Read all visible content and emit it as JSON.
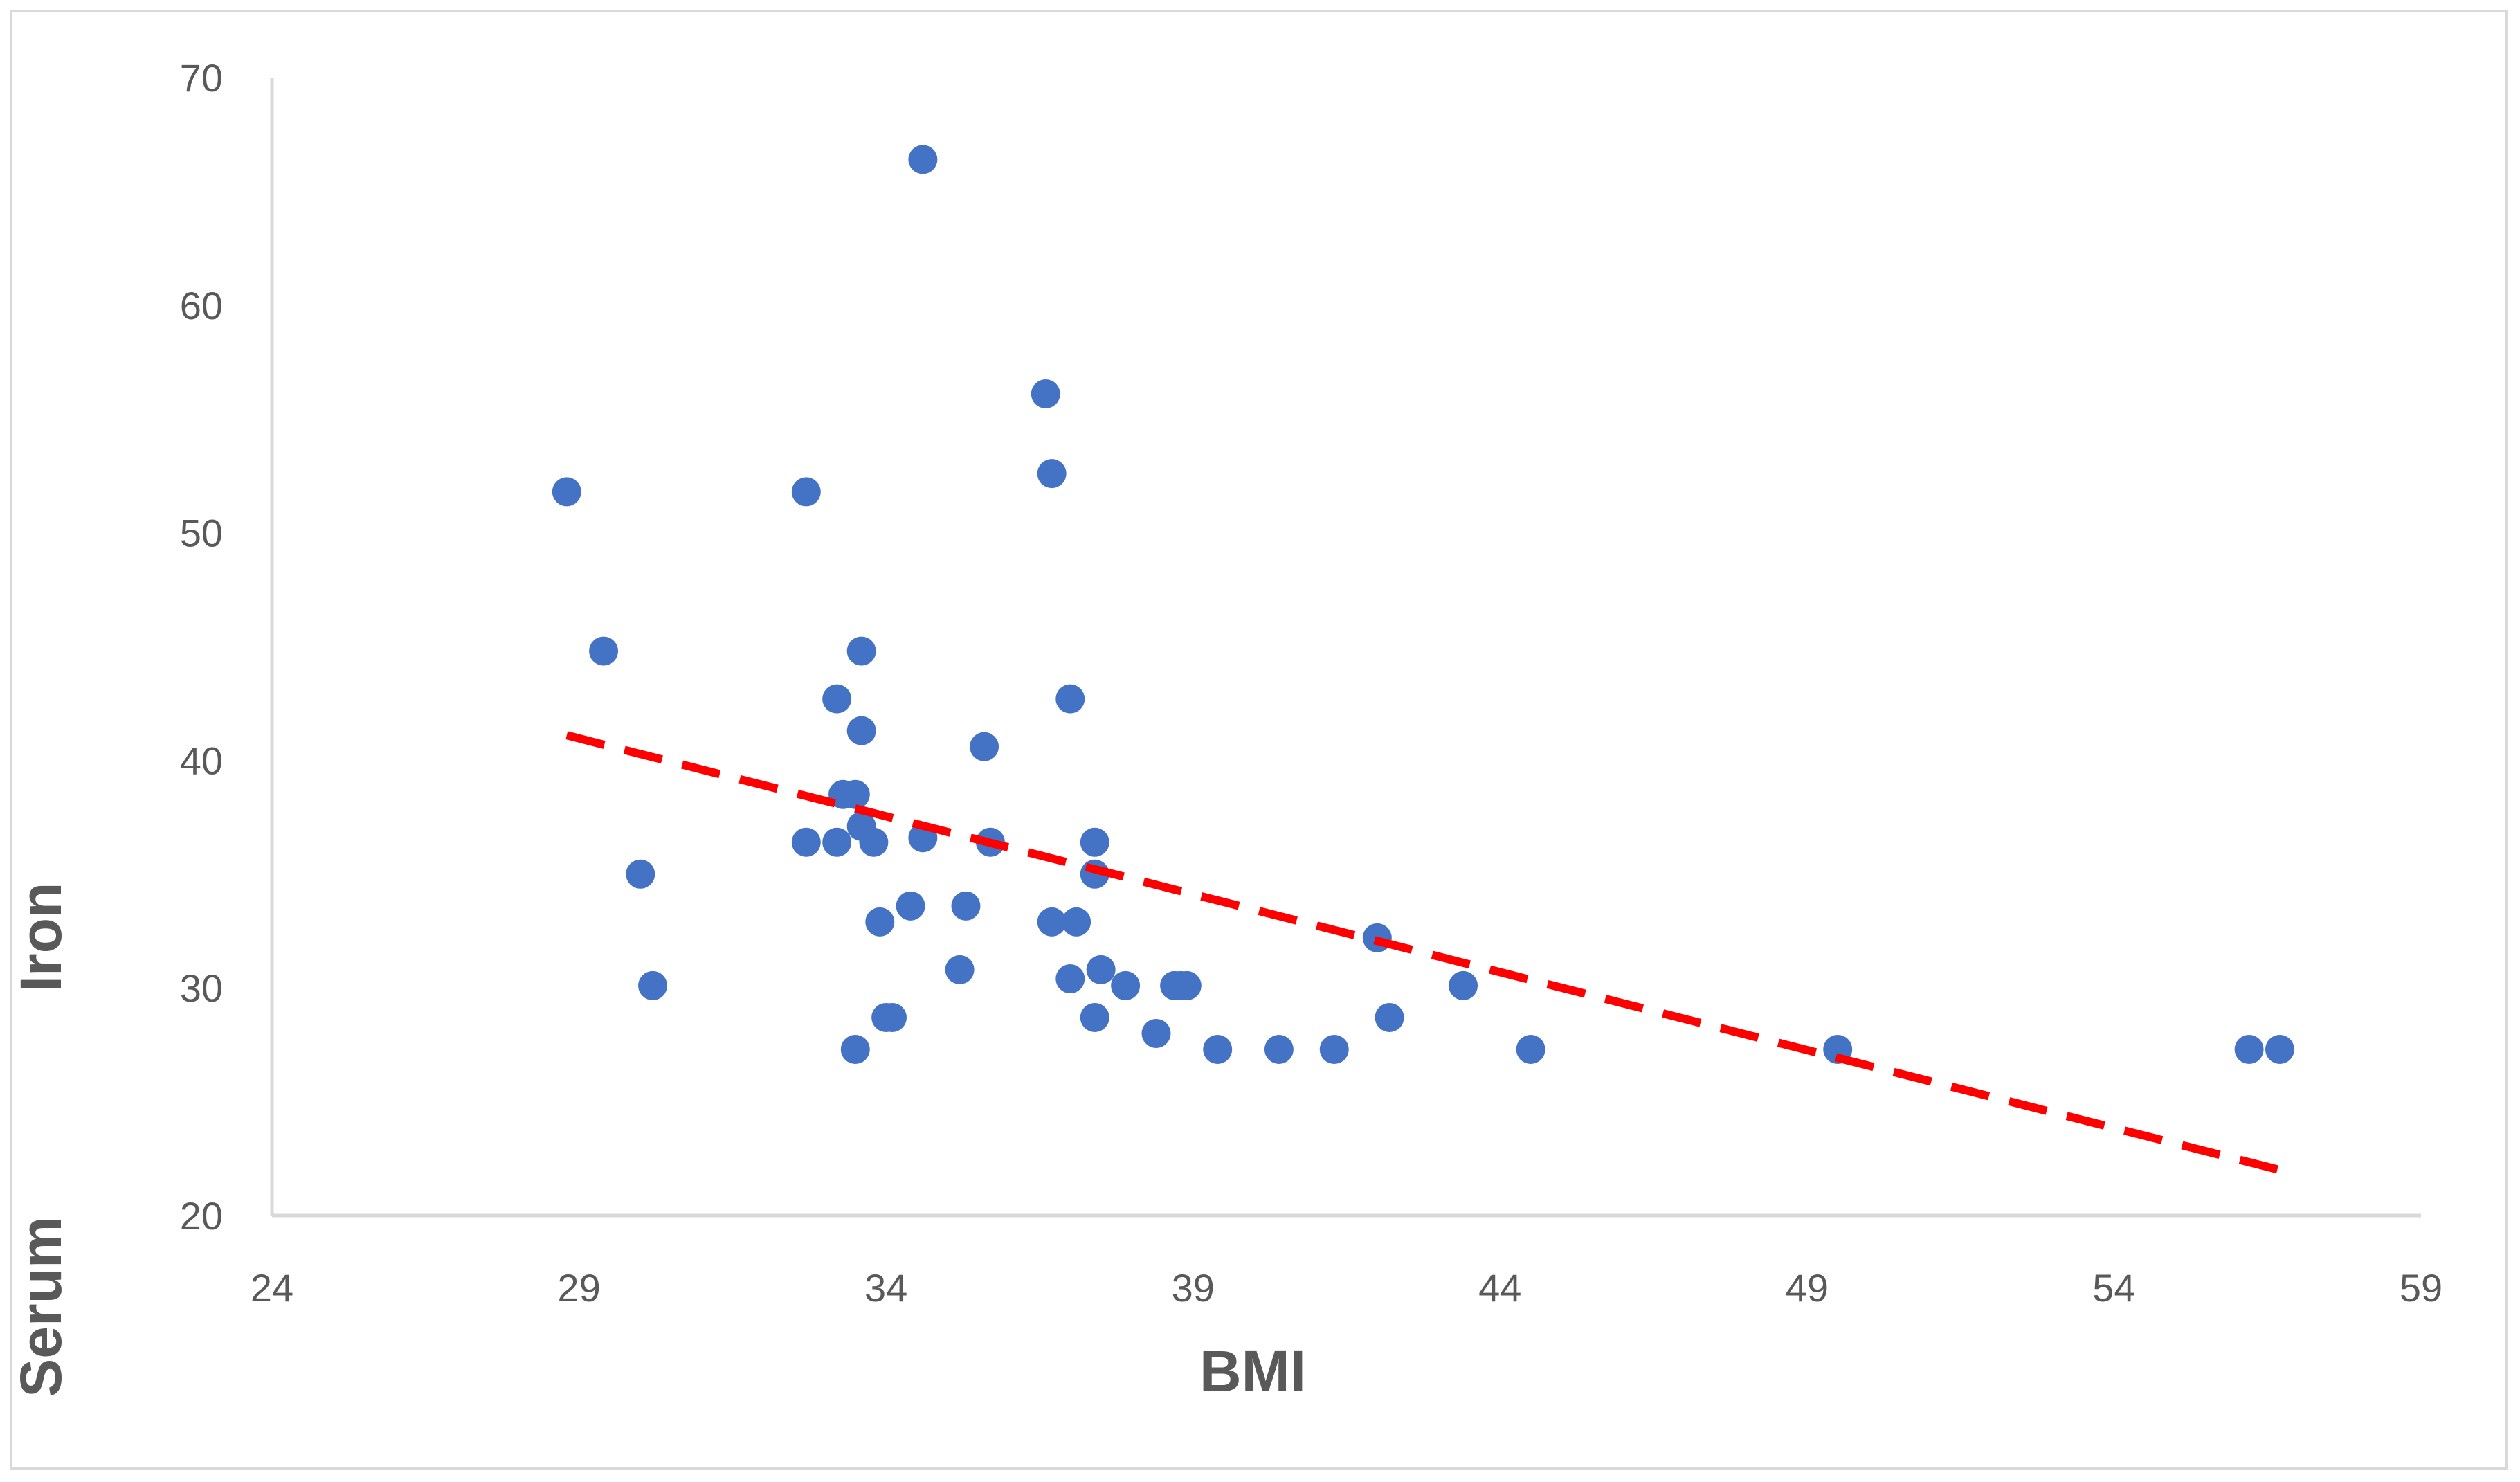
{
  "chart_data": {
    "type": "scatter",
    "title": "",
    "xlabel": "BMI",
    "ylabel": [
      "Serum",
      "Iron"
    ],
    "xlim": [
      24,
      59
    ],
    "ylim": [
      20,
      70
    ],
    "x_ticks": [
      24,
      29,
      34,
      39,
      44,
      49,
      54,
      59
    ],
    "y_ticks": [
      20,
      30,
      40,
      50,
      60,
      70
    ],
    "grid": false,
    "legend": "none",
    "series": [
      {
        "color": "#4472c4",
        "points": [
          {
            "x": 28.8,
            "y": 51.8
          },
          {
            "x": 29.4,
            "y": 44.8
          },
          {
            "x": 30.0,
            "y": 35.0
          },
          {
            "x": 30.2,
            "y": 30.1
          },
          {
            "x": 32.7,
            "y": 51.8
          },
          {
            "x": 32.7,
            "y": 36.4
          },
          {
            "x": 33.2,
            "y": 42.7
          },
          {
            "x": 33.2,
            "y": 36.4
          },
          {
            "x": 33.3,
            "y": 38.5
          },
          {
            "x": 33.5,
            "y": 38.5
          },
          {
            "x": 33.5,
            "y": 27.3
          },
          {
            "x": 33.6,
            "y": 44.8
          },
          {
            "x": 33.6,
            "y": 41.3
          },
          {
            "x": 33.6,
            "y": 37.1
          },
          {
            "x": 33.8,
            "y": 36.4
          },
          {
            "x": 33.9,
            "y": 32.9
          },
          {
            "x": 34.0,
            "y": 28.7
          },
          {
            "x": 34.1,
            "y": 28.7
          },
          {
            "x": 34.4,
            "y": 33.6
          },
          {
            "x": 34.6,
            "y": 66.4
          },
          {
            "x": 34.6,
            "y": 36.6
          },
          {
            "x": 35.2,
            "y": 30.8
          },
          {
            "x": 35.3,
            "y": 33.6
          },
          {
            "x": 35.6,
            "y": 40.6
          },
          {
            "x": 35.7,
            "y": 36.4
          },
          {
            "x": 36.6,
            "y": 56.1
          },
          {
            "x": 36.7,
            "y": 52.6
          },
          {
            "x": 36.7,
            "y": 32.9
          },
          {
            "x": 37.0,
            "y": 42.7
          },
          {
            "x": 37.0,
            "y": 30.4
          },
          {
            "x": 37.1,
            "y": 32.9
          },
          {
            "x": 37.4,
            "y": 36.4
          },
          {
            "x": 37.4,
            "y": 35.0
          },
          {
            "x": 37.4,
            "y": 28.7
          },
          {
            "x": 37.5,
            "y": 30.8
          },
          {
            "x": 37.9,
            "y": 30.1
          },
          {
            "x": 38.4,
            "y": 28.0
          },
          {
            "x": 38.7,
            "y": 30.1
          },
          {
            "x": 38.8,
            "y": 30.1
          },
          {
            "x": 38.9,
            "y": 30.1
          },
          {
            "x": 39.4,
            "y": 27.3
          },
          {
            "x": 40.4,
            "y": 27.3
          },
          {
            "x": 41.3,
            "y": 27.3
          },
          {
            "x": 42.0,
            "y": 32.2
          },
          {
            "x": 42.2,
            "y": 28.7
          },
          {
            "x": 43.4,
            "y": 30.1
          },
          {
            "x": 44.5,
            "y": 27.3
          },
          {
            "x": 49.5,
            "y": 27.3
          },
          {
            "x": 56.2,
            "y": 27.3
          },
          {
            "x": 56.7,
            "y": 27.3
          }
        ]
      }
    ],
    "trendline": {
      "style": "dashed",
      "color": "#ff0000",
      "x": [
        28.8,
        56.7
      ],
      "y": [
        41.1,
        22.0
      ]
    }
  }
}
